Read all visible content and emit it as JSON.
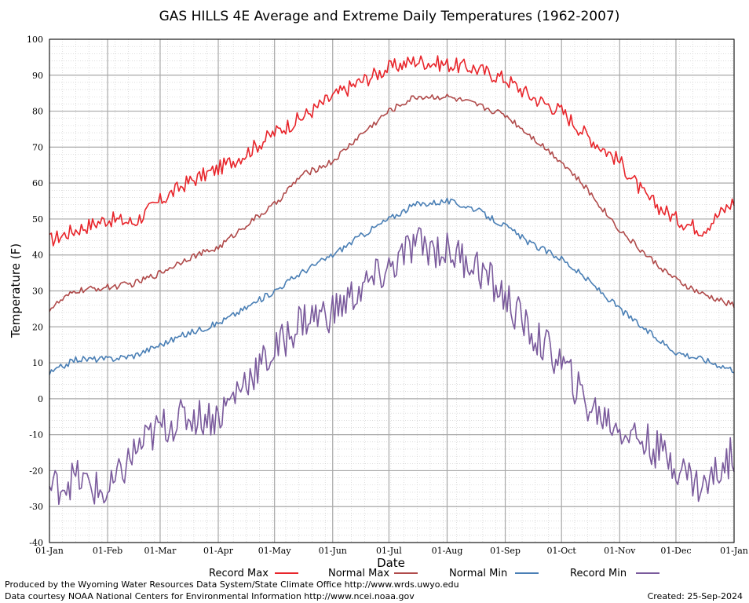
{
  "chart_data": {
    "type": "line",
    "title": "GAS HILLS 4E Average and Extreme Daily Temperatures (1962-2007)",
    "xlabel": "Date",
    "ylabel": "Temperature (F)",
    "ylim": [
      -40,
      100
    ],
    "yticks": [
      -40,
      -30,
      -20,
      -10,
      0,
      10,
      20,
      30,
      40,
      50,
      60,
      70,
      80,
      90,
      100
    ],
    "xticks": [
      "01-Jan",
      "01-Feb",
      "01-Mar",
      "01-Apr",
      "01-May",
      "01-Jun",
      "01-Jul",
      "01-Aug",
      "01-Sep",
      "01-Oct",
      "01-Nov",
      "01-Dec",
      "01-Jan"
    ],
    "x_unit": "day of year",
    "xlim": [
      1,
      366
    ],
    "grid": true,
    "legend_position": "bottom",
    "x": [
      1,
      15,
      32,
      46,
      60,
      74,
      91,
      105,
      121,
      135,
      152,
      166,
      182,
      196,
      213,
      227,
      244,
      258,
      274,
      288,
      305,
      319,
      335,
      349,
      366
    ],
    "series": [
      {
        "name": "Record Max",
        "color": "#e8252b",
        "values": [
          44,
          47,
          50,
          49,
          55,
          60,
          64,
          68,
          74,
          78,
          84,
          88,
          92,
          94,
          93,
          92,
          89,
          84,
          80,
          73,
          66,
          56,
          50,
          47,
          55
        ]
      },
      {
        "name": "Normal Max",
        "color": "#b04b4b",
        "values": [
          25,
          30,
          31,
          32,
          35,
          39,
          42,
          48,
          54,
          62,
          66,
          73,
          80,
          84,
          84,
          82,
          79,
          73,
          66,
          58,
          47,
          40,
          33,
          29,
          26
        ]
      },
      {
        "name": "Normal Min",
        "color": "#4a7fb5",
        "values": [
          7,
          11,
          11,
          12,
          15,
          18,
          21,
          25,
          30,
          35,
          40,
          45,
          50,
          54,
          55,
          53,
          48,
          43,
          39,
          33,
          25,
          19,
          13,
          11,
          8
        ]
      },
      {
        "name": "Record Min",
        "color": "#7a5a9c",
        "values": [
          -25,
          -22,
          -27,
          -15,
          -8,
          -5,
          -5,
          5,
          13,
          22,
          24,
          30,
          36,
          43,
          41,
          38,
          28,
          18,
          10,
          -2,
          -8,
          -12,
          -18,
          -25,
          -15
        ]
      }
    ]
  },
  "footer": {
    "produced_by": "Produced by the Wyoming Water Resources Data System/State Climate Office http://www.wrds.uwyo.edu",
    "data_courtesy": "Data courtesy NOAA National Centers for Environmental Information http://www.ncei.noaa.gov",
    "created": "Created:  25-Sep-2024"
  }
}
